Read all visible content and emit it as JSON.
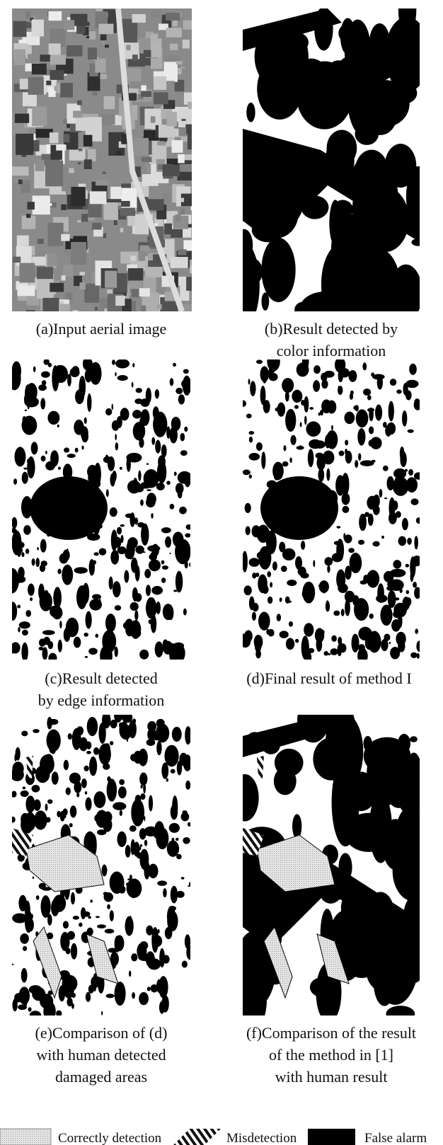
{
  "panels": [
    {
      "caption": [
        "(a)Input aerial image"
      ]
    },
    {
      "caption": [
        "(b)Result detected by",
        "color information"
      ]
    },
    {
      "caption": [
        "(c)Result detected",
        "by edge information"
      ]
    },
    {
      "caption": [
        "(d)Final result of method I"
      ]
    },
    {
      "caption": [
        "(e)Comparison of (d)",
        "with human detected",
        "damaged areas"
      ]
    },
    {
      "caption": [
        "(f)Comparison of the result",
        "of the method in [1]",
        "with human result"
      ]
    }
  ],
  "legend": [
    "Correctly detection",
    "Misdetection",
    "False alarm"
  ]
}
